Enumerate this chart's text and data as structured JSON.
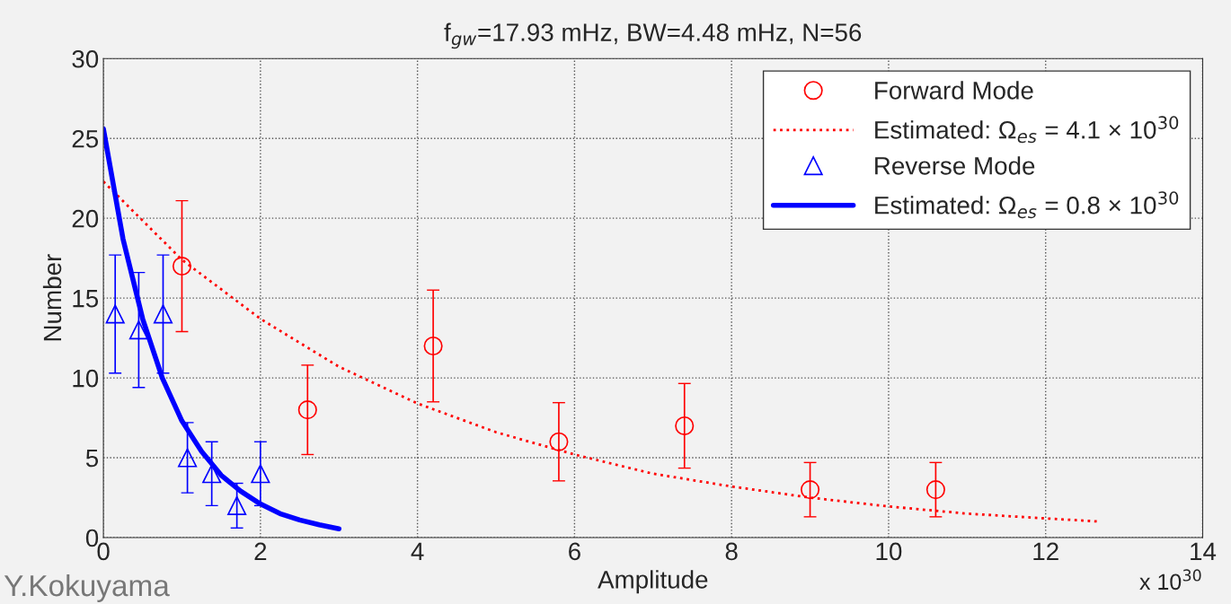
{
  "chart_data": {
    "type": "scatter",
    "title": "f$_{gw}$=17.93 mHz, BW=4.48 mHz, N=56",
    "xlabel": "Amplitude",
    "ylabel": "Number",
    "xlim": [
      0,
      14
    ],
    "xticks": [
      0,
      2,
      4,
      6,
      8,
      10,
      12,
      14
    ],
    "ylim": [
      0,
      30
    ],
    "yticks": [
      0,
      5,
      10,
      15,
      20,
      25,
      30
    ],
    "grid": true,
    "legend": "top right",
    "annotations": [
      "x 10$^{30}$",
      "Y.Kokuyama"
    ],
    "series": [
      {
        "name": "Forward Mode",
        "color": "#ff0000",
        "marker": "circle",
        "x": [
          1.0,
          2.6,
          4.2,
          5.8,
          7.4,
          9.0,
          10.6
        ],
        "values": [
          17,
          8,
          12,
          6,
          7,
          3,
          3
        ],
        "errors": [
          4.1,
          2.8,
          3.5,
          2.45,
          2.65,
          1.7,
          1.7
        ]
      },
      {
        "name": "Estimated: Ω$_{es}$ = 4.1 × 10$^{30}$",
        "type": "line",
        "color": "#ff0000",
        "marker": "none",
        "line_style": "dotted",
        "x": [
          0,
          1,
          2,
          3,
          4,
          5,
          6,
          7,
          8,
          9,
          10,
          11,
          12,
          12.7
        ],
        "values": [
          22.3,
          17.4,
          13.7,
          10.7,
          8.4,
          6.6,
          5.2,
          4.0,
          3.2,
          2.5,
          1.95,
          1.5,
          1.2,
          1.0
        ]
      },
      {
        "name": "Reverse Mode",
        "color": "#0000ff",
        "marker": "triangle",
        "x": [
          0.15,
          0.45,
          0.76,
          1.07,
          1.38,
          1.7,
          2.0
        ],
        "values": [
          14,
          13,
          14,
          5,
          4,
          2,
          4
        ],
        "errors": [
          3.7,
          3.6,
          3.7,
          2.2,
          2.0,
          1.4,
          2.0
        ]
      },
      {
        "name": "Estimated: Ω$_{es}$ = 0.8 × 10$^{30}$",
        "type": "line",
        "color": "#0000ff",
        "marker": "none",
        "line_style": "solid",
        "x": [
          0,
          0.25,
          0.5,
          0.75,
          1,
          1.25,
          1.5,
          1.75,
          2,
          2.25,
          2.5,
          2.75,
          3
        ],
        "values": [
          25.6,
          18.7,
          13.7,
          10.0,
          7.3,
          5.4,
          3.9,
          2.9,
          2.1,
          1.5,
          1.1,
          0.8,
          0.55
        ]
      }
    ]
  }
}
